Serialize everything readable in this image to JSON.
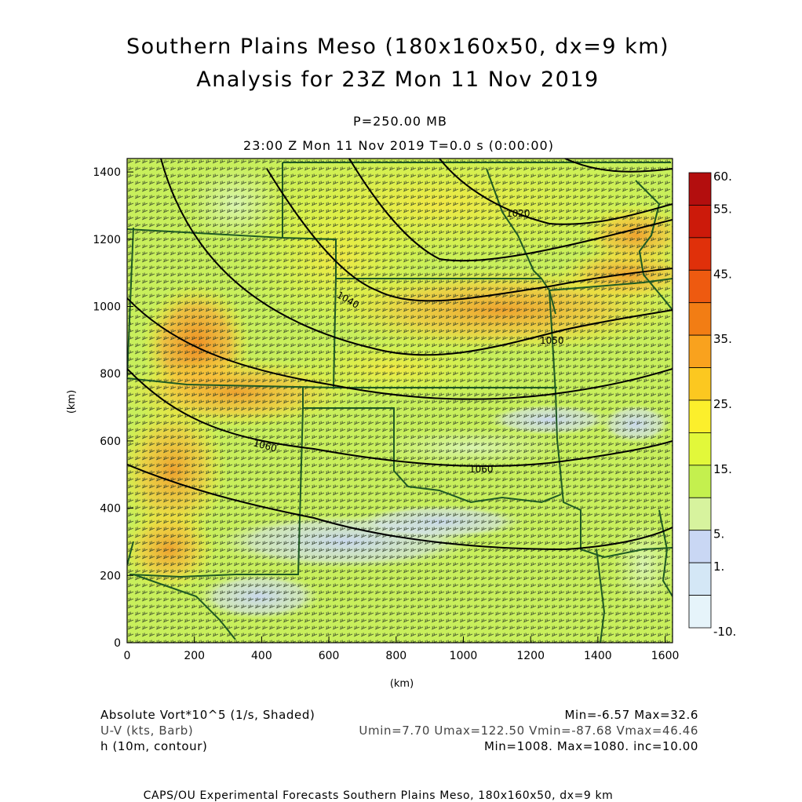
{
  "header": {
    "title_line1": "Southern Plains Meso (180x160x50, dx=9 km)",
    "title_line2": "Analysis for 23Z Mon 11 Nov 2019",
    "level": "P=250.00 MB",
    "time": "23:00 Z Mon 11 Nov 2019    T=0.0 s (0:00:00)"
  },
  "axes": {
    "x_ticks": [
      "0",
      "200",
      "400",
      "600",
      "800",
      "1000",
      "1200",
      "1400",
      "1600"
    ],
    "y_ticks": [
      "0",
      "200",
      "400",
      "600",
      "800",
      "1000",
      "1200",
      "1400"
    ],
    "xlabel": "(km)",
    "ylabel": "(km)"
  },
  "colorbar": {
    "labels": [
      "60.",
      "55.",
      "45.",
      "35.",
      "25.",
      "15.",
      "5.",
      "1.",
      "-10."
    ],
    "colors": [
      "#b30e0e",
      "#cc1a0a",
      "#e0300a",
      "#ee5a10",
      "#f27d14",
      "#f9a21e",
      "#fcc820",
      "#fcef2c",
      "#e2f83a",
      "#c4f04e",
      "#d7f39e",
      "#c9d7f4",
      "#d4e7f6",
      "#e6f4fa"
    ]
  },
  "contour_labels": [
    "1020",
    "1040",
    "1050",
    "1060",
    "1060"
  ],
  "footer": {
    "field1_name": "Absolute Vort*10^5 (1/s, Shaded)",
    "field1_stats": "Min=-6.57 Max=32.6",
    "field2_name": "U-V (kts, Barb)",
    "field2_stats": "Umin=7.70 Umax=122.50 Vmin=-87.68 Vmax=46.46",
    "field3_name": "h (10m, contour)",
    "field3_stats": "Min=1008. Max=1080. inc=10.00",
    "credit": "CAPS/OU Experimental Forecasts  Southern Plains Meso, 180x160x50, dx=9 km"
  }
}
